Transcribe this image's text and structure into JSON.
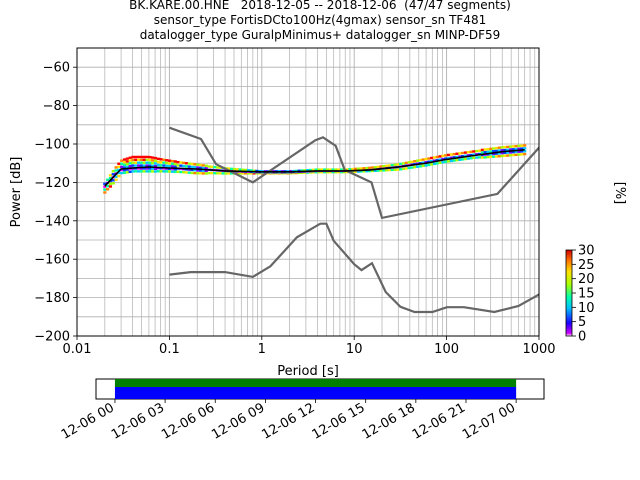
{
  "title": {
    "line1": "BK.KARE.00.HNE   2018-12-05 -- 2018-12-06  (47/47 segments)",
    "line2": "sensor_type FortisDCto100Hz(4gmax) sensor_sn TF481",
    "line3": "datalogger_type GuralpMinimus+ datalogger_sn MINP-DF59"
  },
  "chart_data": [
    {
      "type": "heatmap",
      "xlabel": "Period [s]",
      "ylabel": "Power [dB]",
      "x_scale": "log",
      "xlim": [
        0.01,
        1000
      ],
      "ylim": [
        -200,
        -50
      ],
      "x_ticks": [
        "0.01",
        "0.1",
        "1",
        "10",
        "100",
        "1000"
      ],
      "y_ticks": [
        "−200",
        "−180",
        "−160",
        "−140",
        "−120",
        "−100",
        "−80",
        "−60"
      ],
      "grid": true,
      "colorbar": {
        "label": "[%]",
        "range": [
          0,
          30
        ],
        "ticks": [
          "0",
          "5",
          "10",
          "15",
          "20",
          "25",
          "30"
        ]
      },
      "reference_curves": [
        {
          "name": "",
          "color": "#666666",
          "x": [
            0.1,
            0.17,
            0.4,
            0.8,
            1.24,
            2.4,
            4.3,
            5.0,
            6.0,
            10,
            12,
            15.6,
            21.9,
            31.6,
            45,
            70,
            101,
            154,
            328,
            600,
            10000
          ],
          "y": [
            -168,
            -166.7,
            -166.7,
            -169.2,
            -163.7,
            -148.6,
            -141.5,
            -141.5,
            -150.4,
            -162.6,
            -165.7,
            -162.1,
            -177.1,
            -184.8,
            -187.5,
            -187.5,
            -185.0,
            -185.0,
            -187.5,
            -184.4,
            -151.5
          ]
        },
        {
          "name": "",
          "color": "#666666",
          "x": [
            0.1,
            0.22,
            0.32,
            0.8,
            3.8,
            4.6,
            6.3,
            7.9,
            15.4,
            20,
            354.8,
            10000
          ],
          "y": [
            -91.5,
            -97.4,
            -110.5,
            -120.0,
            -98.0,
            -96.5,
            -101.0,
            -113.5,
            -120.0,
            -138.5,
            -126.0,
            -48.5
          ]
        }
      ],
      "mean_curve": {
        "name": "",
        "color": "#000000",
        "x": [
          0.02,
          0.025,
          0.03,
          0.04,
          0.06,
          0.1,
          0.2,
          0.4,
          1,
          2,
          4,
          8,
          15,
          30,
          60,
          100,
          200,
          400,
          700
        ],
        "y": [
          -122,
          -117,
          -113,
          -112.5,
          -112,
          -112.5,
          -113,
          -114,
          -114.5,
          -114.5,
          -114,
          -114,
          -113.5,
          -112,
          -110,
          -108,
          -106,
          -104,
          -103
        ]
      },
      "spread_band": {
        "x": [
          0.02,
          0.025,
          0.03,
          0.04,
          0.06,
          0.1,
          0.2,
          0.4,
          1,
          2,
          4,
          8,
          15,
          30,
          60,
          100,
          200,
          400,
          700
        ],
        "upper": [
          -120,
          -113,
          -108,
          -106,
          -106,
          -108,
          -110,
          -112,
          -114,
          -114,
          -113,
          -113,
          -112,
          -110,
          -107,
          -105,
          -103,
          -101,
          -100
        ],
        "lower": [
          -126,
          -121,
          -116,
          -115,
          -115,
          -115,
          -116,
          -116,
          -115.5,
          -115.5,
          -115,
          -115,
          -114.5,
          -114,
          -112,
          -110,
          -108,
          -107,
          -106
        ]
      }
    },
    {
      "type": "bar",
      "x_ticks": [
        "12-06 00",
        "12-06 03",
        "12-06 06",
        "12-06 09",
        "12-06 12",
        "12-06 15",
        "12-06 18",
        "12-06 21",
        "12-07 00"
      ],
      "xlim_hours": [
        -1.7,
        38.5
      ],
      "bars": [
        {
          "color": "#008000",
          "start_hours": 0,
          "end_hours": 36
        },
        {
          "color": "#0000ff",
          "start_hours": 0,
          "end_hours": 36
        }
      ]
    }
  ]
}
